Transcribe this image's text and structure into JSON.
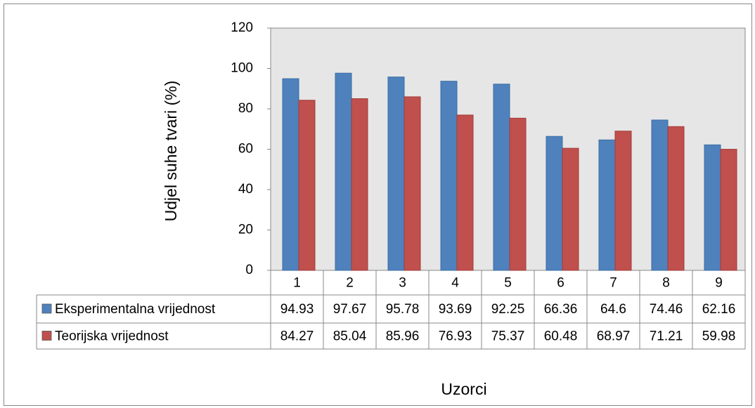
{
  "chart_data": {
    "type": "bar",
    "y_label": "Udjel suhe tvari (%)",
    "x_label": "Uzorci",
    "categories": [
      "1",
      "2",
      "3",
      "4",
      "5",
      "6",
      "7",
      "8",
      "9"
    ],
    "series": [
      {
        "name": "Eksperimentalna vrijednost",
        "color": "#4f81bd",
        "values": [
          94.93,
          97.67,
          95.78,
          93.69,
          92.25,
          66.36,
          64.6,
          74.46,
          62.16
        ]
      },
      {
        "name": "Teorijska vrijednost",
        "color": "#c0504d",
        "values": [
          84.27,
          85.04,
          85.96,
          76.93,
          75.37,
          60.48,
          68.97,
          71.21,
          59.98
        ]
      }
    ],
    "ylim": [
      0,
      120
    ],
    "yticks": [
      0,
      20,
      40,
      60,
      80,
      100,
      120
    ],
    "grid": false,
    "data_table": true
  }
}
